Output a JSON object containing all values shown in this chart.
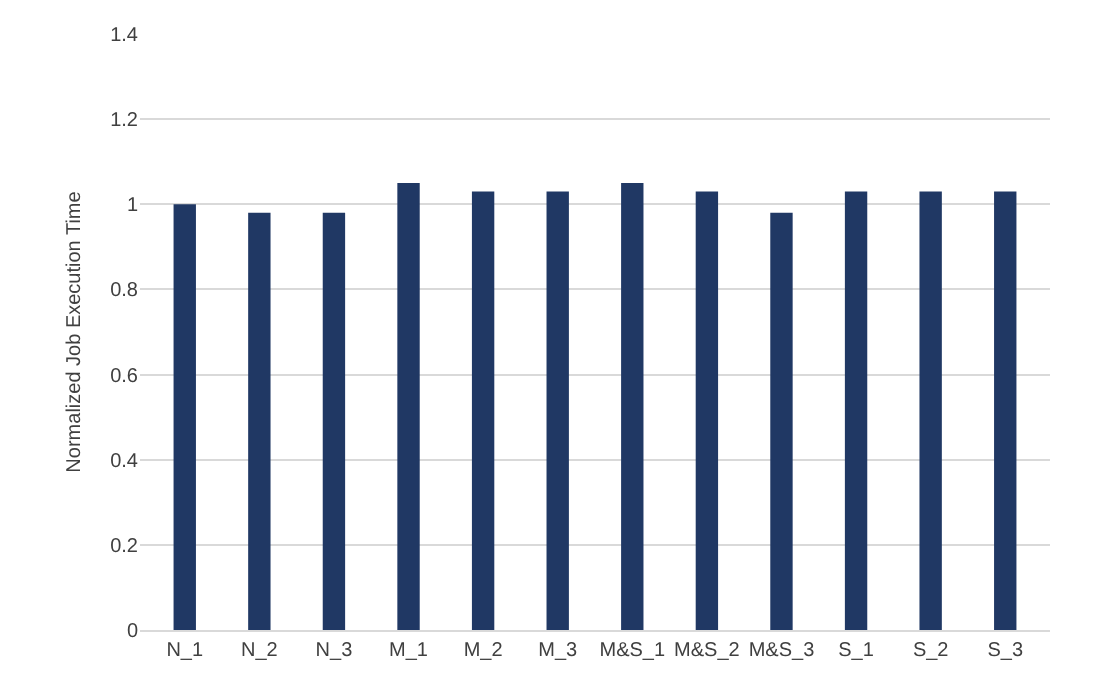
{
  "chart_data": {
    "type": "bar",
    "ylabel": "Normalized Job Execution Time",
    "categories": [
      "N_1",
      "N_2",
      "N_3",
      "M_1",
      "M_2",
      "M_3",
      "M&S_1",
      "M&S_2",
      "M&S_3",
      "S_1",
      "S_2",
      "S_3"
    ],
    "values": [
      1.0,
      0.98,
      0.98,
      1.05,
      1.03,
      1.03,
      1.05,
      1.03,
      0.98,
      1.03,
      1.03,
      1.03
    ],
    "color": "#203864",
    "ylim": [
      0,
      1.4
    ],
    "yticks": [
      0,
      0.2,
      0.4,
      0.6,
      0.8,
      1,
      1.2,
      1.4
    ],
    "grid": "y"
  }
}
